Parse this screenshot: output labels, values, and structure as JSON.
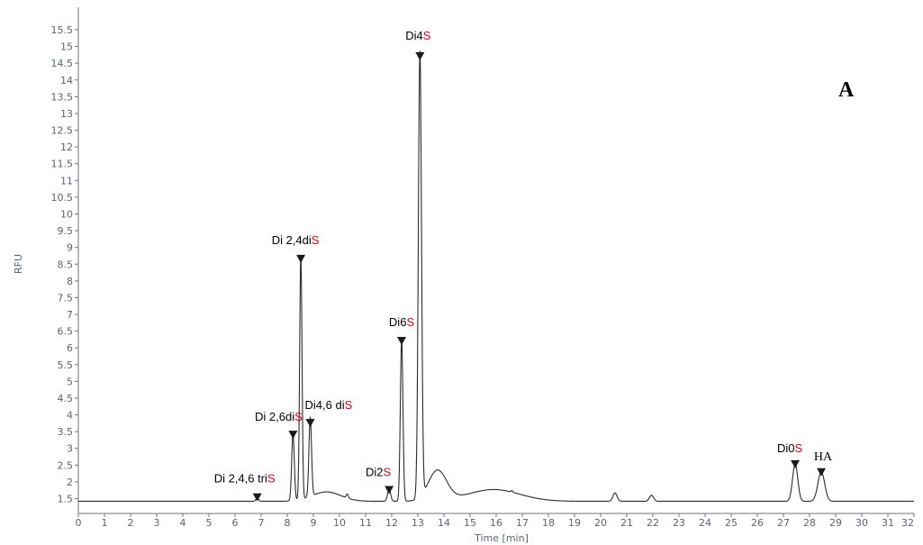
{
  "chart_data": {
    "type": "line",
    "title": "",
    "panel_label": "A",
    "xlabel": "Time [min]",
    "ylabel": "RFU",
    "xlim": [
      0,
      32
    ],
    "ylim": [
      1.0,
      15.6
    ],
    "x_ticks": [
      "0",
      "1",
      "2",
      "3",
      "4",
      "5",
      "6",
      "7",
      "8",
      "9",
      "10",
      "11",
      "12",
      "13",
      "14",
      "15",
      "16",
      "17",
      "18",
      "19",
      "20",
      "21",
      "22",
      "23",
      "24",
      "25",
      "26",
      "27",
      "28",
      "29",
      "30",
      "31",
      "32"
    ],
    "y_ticks": [
      "1.5",
      "2",
      "2.5",
      "3",
      "3.5",
      "4",
      "4.5",
      "5",
      "5.5",
      "6",
      "6.5",
      "7",
      "7.5",
      "8",
      "8.5",
      "9",
      "9.5",
      "10",
      "10.5",
      "11",
      "11.5",
      "12",
      "12.5",
      "13",
      "13.5",
      "14",
      "14.5",
      "15",
      "15.5"
    ],
    "grid": false,
    "line_color": "#2b2b2b",
    "highlight_color": "#e0001a",
    "baseline": 1.42,
    "series": [
      {
        "peaks": [
          {
            "x": 6.85,
            "height": 0.1,
            "width": 0.05
          },
          {
            "x": 8.22,
            "height": 2.0,
            "width": 0.05
          },
          {
            "x": 8.52,
            "height": 7.25,
            "width": 0.045
          },
          {
            "x": 8.88,
            "height": 2.35,
            "width": 0.05
          },
          {
            "x": 11.9,
            "height": 0.35,
            "width": 0.06
          },
          {
            "x": 12.38,
            "height": 4.8,
            "width": 0.05
          },
          {
            "x": 13.08,
            "height": 13.3,
            "width": 0.06
          },
          {
            "x": 9.5,
            "height": 0.28,
            "width": 0.55
          },
          {
            "x": 10.3,
            "height": 0.12,
            "width": 0.04
          },
          {
            "x": 13.75,
            "height": 0.9,
            "width": 0.35
          },
          {
            "x": 15.9,
            "height": 0.35,
            "width": 1.0
          },
          {
            "x": 16.6,
            "height": 0.05,
            "width": 0.03
          },
          {
            "x": 20.55,
            "height": 0.25,
            "width": 0.08
          },
          {
            "x": 21.95,
            "height": 0.18,
            "width": 0.08
          },
          {
            "x": 27.45,
            "height": 1.12,
            "width": 0.1
          },
          {
            "x": 28.45,
            "height": 0.88,
            "width": 0.13
          }
        ]
      }
    ],
    "peak_labels": [
      {
        "x": 6.85,
        "y": 1.55,
        "prefix": "Di 2,4,6 tri",
        "suffix": "S"
      },
      {
        "x": 8.22,
        "y": 3.42,
        "prefix": "Di 2,6di",
        "suffix": "S"
      },
      {
        "x": 8.52,
        "y": 8.67,
        "prefix": "Di 2,4di",
        "suffix": "S"
      },
      {
        "x": 8.88,
        "y": 3.77,
        "prefix": "Di4,6 di",
        "suffix": "S"
      },
      {
        "x": 11.9,
        "y": 1.77,
        "prefix": "Di2",
        "suffix": "S"
      },
      {
        "x": 12.38,
        "y": 6.22,
        "prefix": "Di6",
        "suffix": "S"
      },
      {
        "x": 13.08,
        "y": 14.72,
        "prefix": "Di4",
        "suffix": "S"
      },
      {
        "x": 27.45,
        "y": 2.54,
        "prefix": "Di0",
        "suffix": "S"
      },
      {
        "x": 28.45,
        "y": 2.3,
        "prefix": "HA",
        "suffix": ""
      }
    ]
  }
}
